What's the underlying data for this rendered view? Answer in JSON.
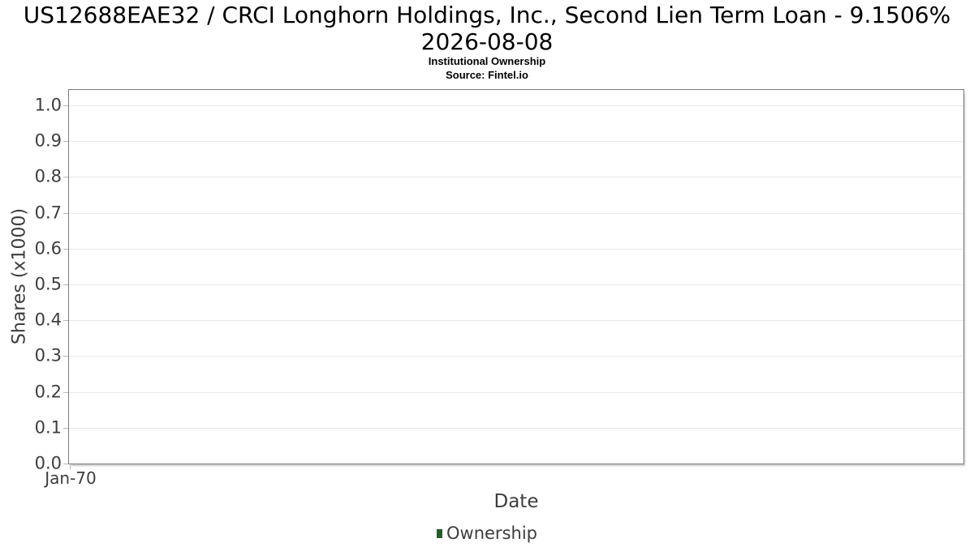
{
  "title": {
    "line1": "US12688EAE32 / CRCI Longhorn Holdings, Inc., Second Lien Term Loan - 9.1506%",
    "line2": "2026-08-08"
  },
  "subtitle": "Institutional Ownership",
  "source": "Source: Fintel.io",
  "chart_data": {
    "type": "line",
    "title": "US12688EAE32 / CRCI Longhorn Holdings, Inc., Second Lien Term Loan - 9.1506% 2026-08-08",
    "subtitle": "Institutional Ownership",
    "source": "Source: Fintel.io",
    "xlabel": "Date",
    "ylabel": "Shares (x1000)",
    "x_ticks": [
      "Jan-70"
    ],
    "y_ticks": [
      "0.0",
      "0.1",
      "0.2",
      "0.3",
      "0.4",
      "0.5",
      "0.6",
      "0.7",
      "0.8",
      "0.9",
      "1.0"
    ],
    "ylim": [
      0,
      1.05
    ],
    "xlim_label": "Jan-70",
    "grid": true,
    "legend_position": "bottom-center",
    "series": [
      {
        "name": "Ownership",
        "color": "#285a2e",
        "values": []
      }
    ]
  },
  "colors": {
    "grid_line": "#e8e8e8",
    "plot_border": "#7b7b7b",
    "tick_mark": "#b6b6b6",
    "tick_label": "#3d3d3d",
    "axis_title": "#3d3d3d",
    "title_text": "#000000",
    "legend_text": "#3d3d3d",
    "legend_swatch": "#285a2e"
  }
}
